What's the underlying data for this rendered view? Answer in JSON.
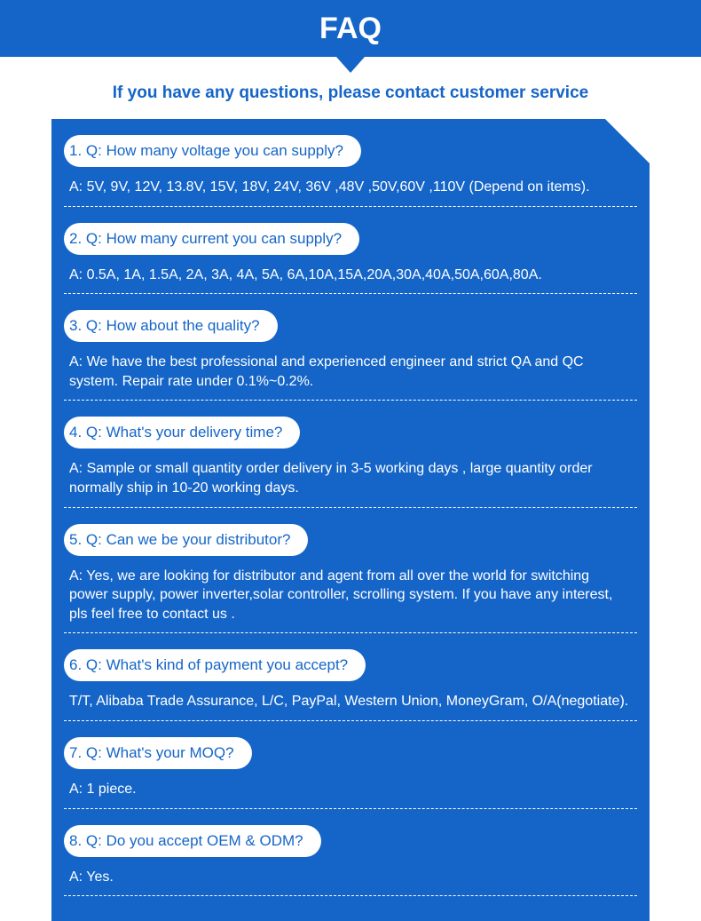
{
  "colors": {
    "primary": "#1565c8",
    "text_on_primary": "#ffffff",
    "background": "#ffffff"
  },
  "header": {
    "title": "FAQ"
  },
  "subheader": "If you have any questions, please contact customer service",
  "faq": [
    {
      "q": "1. Q: How many voltage you can supply?",
      "a": "A:  5V, 9V, 12V, 13.8V, 15V, 18V, 24V, 36V ,48V ,50V,60V ,110V (Depend on items)."
    },
    {
      "q": "2. Q: How many current you can supply?",
      "a": "A:  0.5A, 1A, 1.5A, 2A, 3A, 4A, 5A, 6A,10A,15A,20A,30A,40A,50A,60A,80A."
    },
    {
      "q": "3. Q: How about the quality?",
      "a": "A:  We have the best professional and experienced engineer and strict QA and QC system. Repair rate under 0.1%~0.2%."
    },
    {
      "q": "4. Q: What's your delivery time?",
      "a": "A:  Sample or small quantity order delivery in 3-5 working days , large quantity order normally ship in 10-20 working days."
    },
    {
      "q": "5. Q: Can we be your distributor?",
      "a": "A:  Yes, we are looking for distributor and agent from all over the world for switching power supply, power inverter,solar controller, scrolling system. If you have any interest, pls feel free to contact us ."
    },
    {
      "q": "6. Q: What's kind of payment you accept?",
      "a": "T/T, Alibaba Trade Assurance, L/C, PayPal, Western Union, MoneyGram, O/A(negotiate)."
    },
    {
      "q": "7. Q: What's your MOQ?",
      "a": "A:  1 piece."
    },
    {
      "q": "8. Q: Do you accept OEM & ODM?",
      "a": "A:  Yes."
    }
  ]
}
